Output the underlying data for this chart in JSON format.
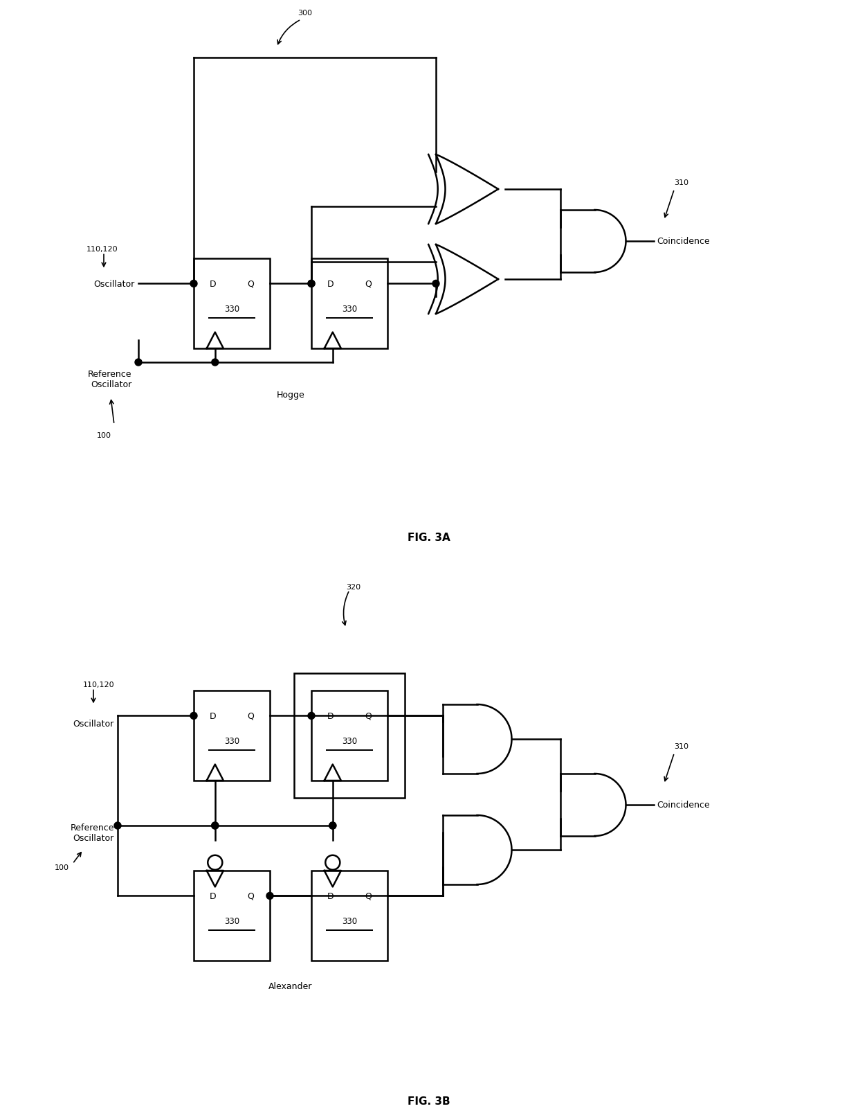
{
  "bg_color": "#ffffff",
  "line_color": "#000000",
  "lw": 1.8,
  "fig_width": 12.4,
  "fig_height": 16.08,
  "fig3a_label": "FIG. 3A",
  "fig3b_label": "FIG. 3B",
  "label_300": "300",
  "label_310a": "310",
  "label_110_120a": "110,120",
  "label_oscillator_a": "Oscillator",
  "label_ref_osc_a": "Reference\nOscillator",
  "label_100a": "100",
  "label_hogge": "Hogge",
  "label_330": "330",
  "label_coincidence": "Coincidence",
  "label_110_120b": "110,120",
  "label_320": "320",
  "label_oscillator_b": "Oscillator",
  "label_100b": "100",
  "label_ref_osc_b": "Reference\nOscillator",
  "label_310b": "310",
  "label_alexander": "Alexander"
}
